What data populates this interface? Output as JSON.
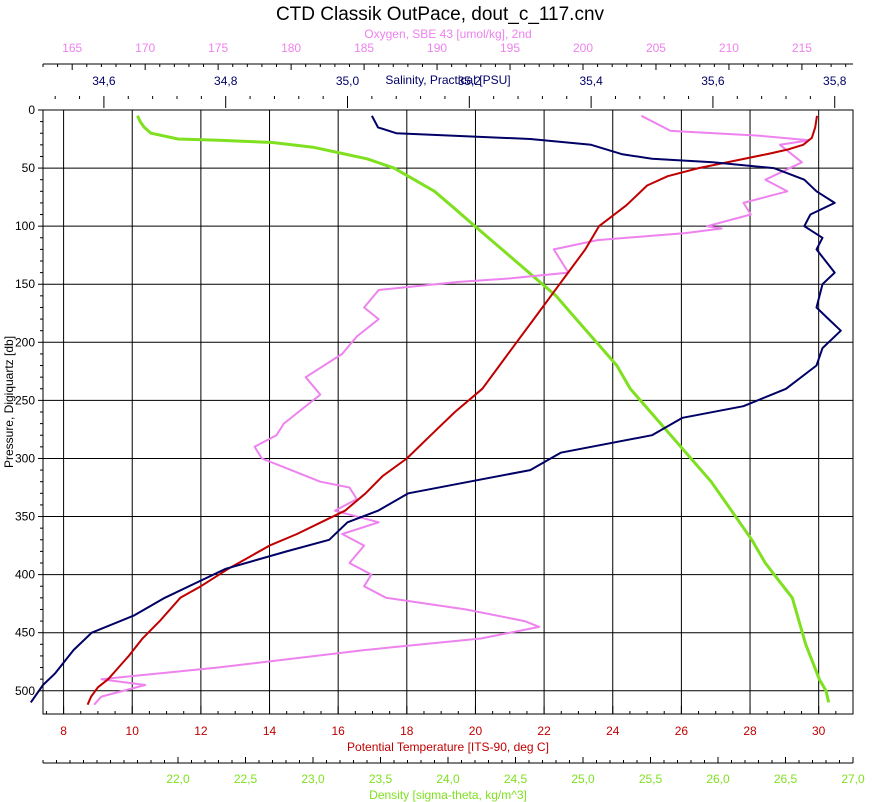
{
  "chart_data": {
    "type": "line",
    "title": "CTD Classik OutPace, dout_c_117.cnv",
    "ylabel": "Pressure, Digiquartz [db]",
    "ylim": [
      0,
      520
    ],
    "y_ticks": [
      0,
      50,
      100,
      150,
      200,
      250,
      300,
      350,
      400,
      450,
      500
    ],
    "grid": true,
    "colors": {
      "temperature": "#c00000",
      "density": "#7fe020",
      "salinity": "#000066",
      "oxygen": "#ee82ee"
    },
    "axes": {
      "temperature": {
        "label": "Potential Temperature [ITS-90, deg C]",
        "range": [
          7.4,
          31.0
        ],
        "ticks": [
          8,
          10,
          12,
          14,
          16,
          18,
          20,
          22,
          24,
          26,
          28,
          30
        ]
      },
      "density": {
        "label": "Density [sigma-theta, kg/m^3]",
        "range": [
          21.0,
          27.0
        ],
        "ticks": [
          "22,0",
          "22,5",
          "23,0",
          "23,5",
          "24,0",
          "24,5",
          "25,0",
          "25,5",
          "26,0",
          "26,5",
          "27,0"
        ]
      },
      "salinity": {
        "label": "Salinity, Practical [PSU]",
        "range": [
          34.5,
          35.83
        ],
        "ticks": [
          "34,6",
          "34,8",
          "35,0",
          "35,2",
          "35,4",
          "35,6",
          "35,8"
        ]
      },
      "oxygen": {
        "label": "Oxygen, SBE 43 [umol/kg], 2nd",
        "range": [
          163.0,
          218.5
        ],
        "ticks": [
          165,
          170,
          175,
          180,
          185,
          190,
          195,
          200,
          205,
          210,
          215
        ]
      }
    },
    "series": [
      {
        "key": "temperature",
        "x": [
          29.95,
          29.9,
          29.8,
          29.55,
          29.1,
          28.5,
          27.5,
          26.5,
          25.6,
          25.0,
          24.4,
          23.6,
          23.2,
          22.7,
          22.2,
          21.7,
          21.2,
          20.7,
          20.2,
          19.4,
          18.7,
          18.0,
          17.3,
          16.8,
          16.2,
          15.5,
          14.8,
          14.0,
          13.4,
          12.8,
          12.0,
          11.4,
          10.8,
          10.3,
          9.9,
          9.6,
          9.3,
          9.0,
          8.8,
          8.7
        ],
        "y": [
          5,
          15,
          24,
          30,
          34,
          38,
          44,
          50,
          57,
          65,
          82,
          100,
          120,
          140,
          160,
          180,
          200,
          220,
          240,
          260,
          280,
          300,
          315,
          330,
          345,
          355,
          365,
          375,
          385,
          395,
          410,
          420,
          440,
          455,
          470,
          480,
          490,
          497,
          505,
          512
        ]
      },
      {
        "key": "density",
        "x": [
          21.7,
          21.72,
          21.75,
          21.8,
          22.0,
          22.3,
          22.7,
          23.0,
          23.2,
          23.4,
          23.6,
          23.75,
          23.9,
          24.05,
          24.2,
          24.4,
          24.6,
          24.8,
          24.95,
          25.1,
          25.25,
          25.35,
          25.5,
          25.65,
          25.8,
          25.95,
          26.1,
          26.25,
          26.35,
          26.45,
          26.55,
          26.6,
          26.65,
          26.7,
          26.75,
          26.8,
          26.82
        ],
        "y": [
          5,
          10,
          15,
          20,
          25,
          26,
          28,
          32,
          37,
          42,
          50,
          60,
          70,
          85,
          100,
          120,
          140,
          160,
          180,
          200,
          220,
          240,
          260,
          280,
          300,
          320,
          345,
          370,
          390,
          405,
          420,
          440,
          460,
          475,
          490,
          500,
          510
        ]
      },
      {
        "key": "salinity",
        "x": [
          35.04,
          35.05,
          35.08,
          35.3,
          35.4,
          35.45,
          35.5,
          35.6,
          35.7,
          35.75,
          35.77,
          35.8,
          35.76,
          35.75,
          35.78,
          35.77,
          35.8,
          35.78,
          35.77,
          35.79,
          35.81,
          35.78,
          35.77,
          35.72,
          35.65,
          35.55,
          35.5,
          35.35,
          35.3,
          35.2,
          35.1,
          35.05,
          35.0,
          34.97,
          34.9,
          34.8,
          34.76,
          34.7,
          34.65,
          34.58,
          34.55,
          34.52,
          34.5,
          34.48
        ],
        "y": [
          5,
          15,
          20,
          25,
          30,
          38,
          42,
          45,
          50,
          60,
          70,
          80,
          90,
          100,
          110,
          120,
          140,
          150,
          170,
          180,
          190,
          205,
          220,
          240,
          255,
          265,
          280,
          295,
          310,
          320,
          330,
          345,
          355,
          370,
          380,
          395,
          405,
          420,
          435,
          450,
          465,
          485,
          495,
          510
        ]
      },
      {
        "key": "oxygen",
        "x": [
          204.0,
          206.0,
          212.0,
          215.5,
          213.5,
          215.0,
          212.5,
          214.0,
          211.0,
          211.5,
          208.5,
          209.5,
          207.0,
          201.0,
          198.0,
          199.0,
          195.0,
          191.5,
          186.0,
          185.0,
          186.0,
          184.5,
          183.5,
          181.0,
          182.0,
          180.5,
          179.5,
          179.0,
          177.5,
          178.0,
          180.0,
          182.0,
          184.0,
          184.5,
          183.0,
          186.0,
          183.5,
          185.0,
          184.0,
          185.5,
          185.0,
          186.5,
          192.0,
          196.0,
          197.0,
          193.0,
          185.0,
          175.0,
          167.0,
          170.0,
          167.0,
          166.5
        ],
        "y": [
          5,
          18,
          22,
          26,
          30,
          45,
          60,
          70,
          80,
          90,
          100,
          102,
          106,
          112,
          120,
          140,
          145,
          148,
          155,
          170,
          180,
          195,
          210,
          230,
          245,
          260,
          270,
          280,
          290,
          300,
          310,
          320,
          325,
          335,
          345,
          355,
          365,
          375,
          390,
          400,
          410,
          420,
          430,
          440,
          445,
          455,
          465,
          480,
          490,
          495,
          505,
          512
        ]
      }
    ]
  }
}
